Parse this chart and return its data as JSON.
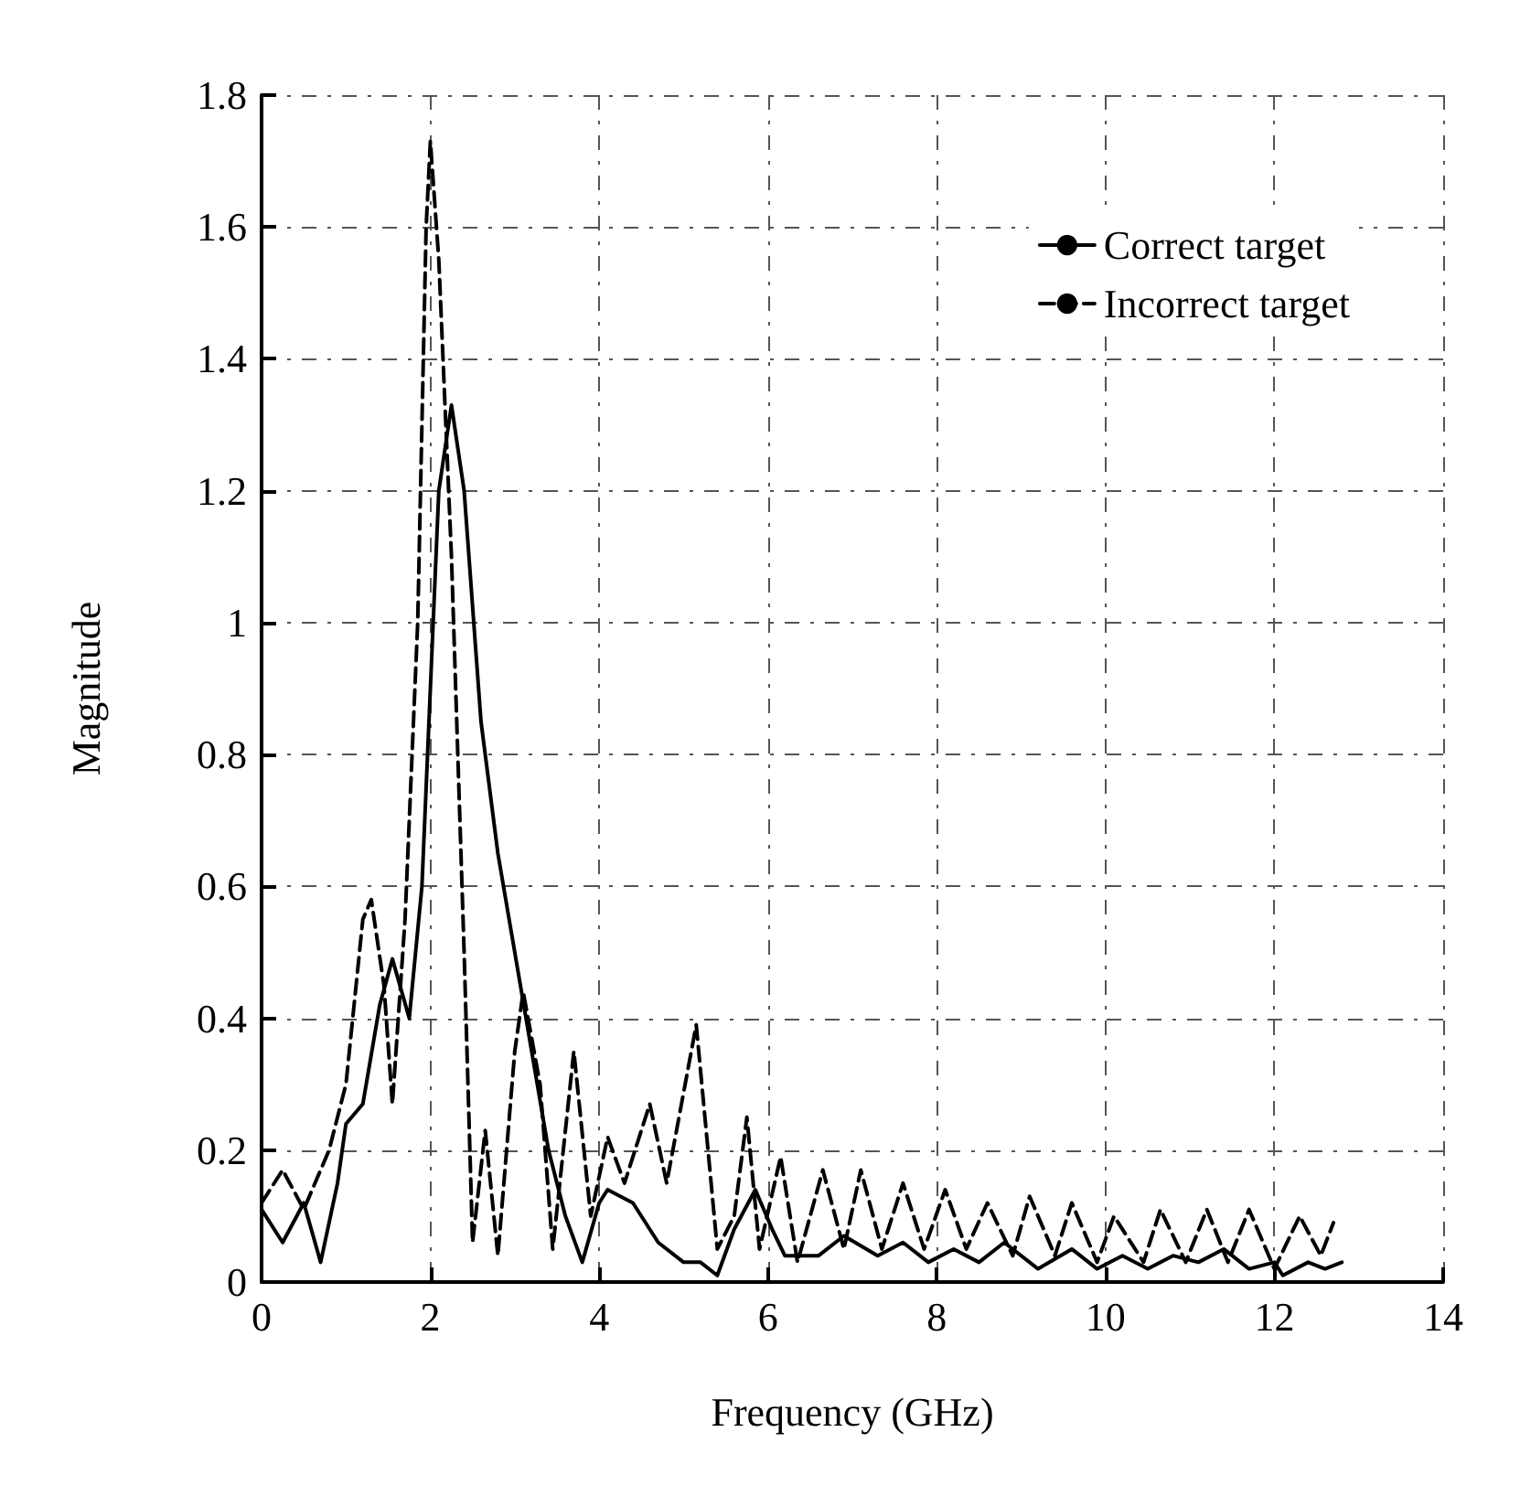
{
  "chart_data": {
    "type": "line",
    "xlabel": "Frequency (GHz)",
    "ylabel": "Magnitude",
    "xlim": [
      0,
      14
    ],
    "xticks": [
      0,
      2,
      4,
      6,
      8,
      10,
      12,
      14
    ],
    "ylim": [
      0,
      1.8
    ],
    "yticks": [
      0,
      0.2,
      0.4,
      0.6,
      0.8,
      1,
      1.2,
      1.4,
      1.6,
      1.8
    ],
    "grid": true,
    "legend": "top right",
    "marker": "none",
    "series": [
      {
        "name": "Correct target",
        "color": "#000000",
        "line_style": "solid",
        "x": [
          0,
          0.25,
          0.5,
          0.7,
          0.9,
          1.0,
          1.2,
          1.4,
          1.55,
          1.75,
          1.9,
          2.0,
          2.1,
          2.25,
          2.4,
          2.6,
          2.8,
          3.0,
          3.2,
          3.4,
          3.6,
          3.8,
          4.0,
          4.1,
          4.4,
          4.7,
          5.0,
          5.2,
          5.4,
          5.6,
          5.85,
          6.05,
          6.2,
          6.6,
          6.9,
          7.3,
          7.6,
          7.9,
          8.2,
          8.5,
          8.8,
          9.2,
          9.6,
          9.9,
          10.2,
          10.5,
          10.8,
          11.1,
          11.4,
          11.7,
          12.0,
          12.1,
          12.4,
          12.6,
          12.8
        ],
        "values": [
          0.11,
          0.06,
          0.12,
          0.03,
          0.15,
          0.24,
          0.27,
          0.42,
          0.49,
          0.4,
          0.6,
          0.9,
          1.2,
          1.33,
          1.2,
          0.85,
          0.65,
          0.5,
          0.35,
          0.2,
          0.1,
          0.03,
          0.12,
          0.14,
          0.12,
          0.06,
          0.03,
          0.03,
          0.01,
          0.08,
          0.14,
          0.08,
          0.04,
          0.04,
          0.07,
          0.04,
          0.06,
          0.03,
          0.05,
          0.03,
          0.06,
          0.02,
          0.05,
          0.02,
          0.04,
          0.02,
          0.04,
          0.03,
          0.05,
          0.02,
          0.03,
          0.01,
          0.03,
          0.02,
          0.03
        ]
      },
      {
        "name": "Incorrect target",
        "color": "#000000",
        "line_style": "dashed",
        "x": [
          0,
          0.25,
          0.5,
          0.8,
          1.0,
          1.2,
          1.3,
          1.45,
          1.55,
          1.7,
          1.85,
          1.95,
          2.0,
          2.1,
          2.25,
          2.4,
          2.5,
          2.65,
          2.8,
          3.0,
          3.1,
          3.3,
          3.45,
          3.7,
          3.9,
          4.1,
          4.3,
          4.6,
          4.8,
          5.15,
          5.4,
          5.6,
          5.75,
          5.9,
          6.15,
          6.35,
          6.65,
          6.9,
          7.1,
          7.35,
          7.6,
          7.85,
          8.1,
          8.35,
          8.6,
          8.9,
          9.1,
          9.4,
          9.6,
          9.9,
          10.1,
          10.45,
          10.65,
          10.95,
          11.2,
          11.45,
          11.7,
          12.0,
          12.3,
          12.55,
          12.7
        ],
        "values": [
          0.12,
          0.17,
          0.11,
          0.2,
          0.3,
          0.55,
          0.58,
          0.45,
          0.27,
          0.55,
          1.0,
          1.6,
          1.73,
          1.55,
          1.1,
          0.5,
          0.06,
          0.23,
          0.04,
          0.35,
          0.44,
          0.3,
          0.05,
          0.35,
          0.1,
          0.22,
          0.15,
          0.27,
          0.15,
          0.39,
          0.05,
          0.1,
          0.25,
          0.05,
          0.19,
          0.03,
          0.17,
          0.05,
          0.17,
          0.05,
          0.15,
          0.05,
          0.14,
          0.05,
          0.12,
          0.04,
          0.13,
          0.04,
          0.12,
          0.03,
          0.1,
          0.03,
          0.11,
          0.03,
          0.11,
          0.03,
          0.11,
          0.02,
          0.1,
          0.04,
          0.09
        ]
      }
    ]
  }
}
